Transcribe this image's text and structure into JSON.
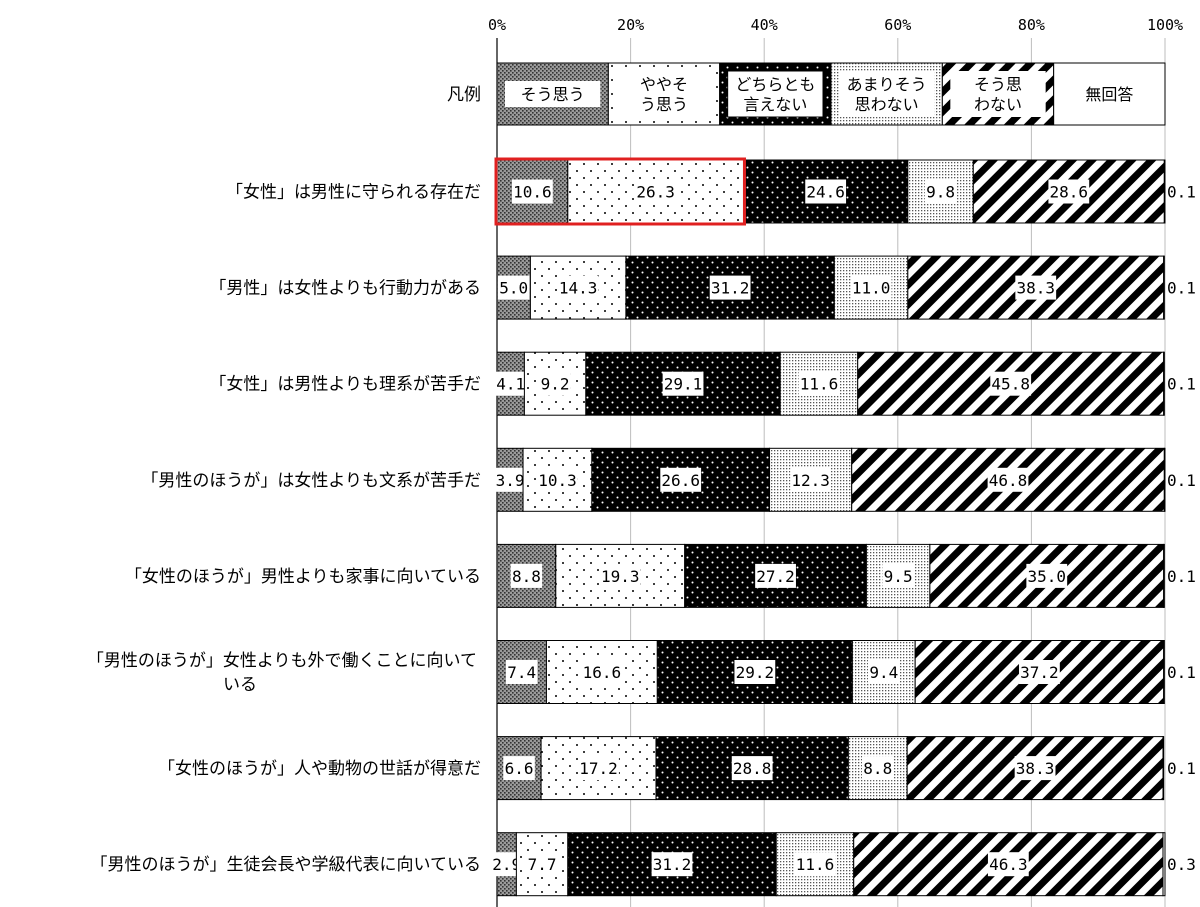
{
  "chart_data": {
    "type": "bar",
    "stacked": true,
    "orientation": "horizontal",
    "percent_scale": true,
    "xlim": [
      0,
      100
    ],
    "x_ticks": [
      "0%",
      "20%",
      "40%",
      "60%",
      "80%",
      "100%"
    ],
    "x_tick_values": [
      0,
      20,
      40,
      60,
      80,
      100
    ],
    "grid": true,
    "legend_label": "凡例",
    "series": [
      {
        "name": "そう思う",
        "legend_lines": [
          "そう思う"
        ],
        "pattern": "dense-dots-gray"
      },
      {
        "name": "ややそう思う",
        "legend_lines": [
          "ややそ",
          "う思う"
        ],
        "pattern": "sparse-dots-white"
      },
      {
        "name": "どちらとも言えない",
        "legend_lines": [
          "どちらとも",
          "言えない"
        ],
        "pattern": "white-dots-black"
      },
      {
        "name": "あまりそう思わない",
        "legend_lines": [
          "あまりそう",
          "思わない"
        ],
        "pattern": "fine-dots-light"
      },
      {
        "name": "そう思わない",
        "legend_lines": [
          "そう思",
          "わない"
        ],
        "pattern": "diagonal-stripes"
      },
      {
        "name": "無回答",
        "legend_lines": [
          "無回答"
        ],
        "pattern": "white"
      }
    ],
    "categories": [
      {
        "label_lines": [
          "「女性」は男性に守られる存在だ"
        ],
        "values": [
          10.6,
          26.3,
          24.6,
          9.8,
          28.6,
          0.1
        ],
        "highlight": [
          0,
          1
        ]
      },
      {
        "label_lines": [
          "「男性」は女性よりも行動力がある"
        ],
        "values": [
          5.0,
          14.3,
          31.2,
          11.0,
          38.3,
          0.1
        ]
      },
      {
        "label_lines": [
          "「女性」は男性よりも理系が苦手だ"
        ],
        "values": [
          4.1,
          9.2,
          29.1,
          11.6,
          45.8,
          0.1
        ]
      },
      {
        "label_lines": [
          "「男性のほうが」は女性よりも文系が苦手だ"
        ],
        "values": [
          3.9,
          10.3,
          26.6,
          12.3,
          46.8,
          0.1
        ]
      },
      {
        "label_lines": [
          "「女性のほうが」男性よりも家事に向いている"
        ],
        "values": [
          8.8,
          19.3,
          27.2,
          9.5,
          35.0,
          0.1
        ]
      },
      {
        "label_lines": [
          "「男性のほうが」女性よりも外で働くことに向いて",
          "いる"
        ],
        "values": [
          7.4,
          16.6,
          29.2,
          9.4,
          37.2,
          0.1
        ]
      },
      {
        "label_lines": [
          "「女性のほうが」人や動物の世話が得意だ"
        ],
        "values": [
          6.6,
          17.2,
          28.8,
          8.8,
          38.3,
          0.1
        ]
      },
      {
        "label_lines": [
          "「男性のほうが」生徒会長や学級代表に向いている"
        ],
        "values": [
          2.9,
          7.7,
          31.2,
          11.6,
          46.3,
          0.3
        ]
      }
    ]
  },
  "colors": {
    "highlight": "#e02020",
    "stripe": "#000000",
    "background": "#ffffff"
  }
}
